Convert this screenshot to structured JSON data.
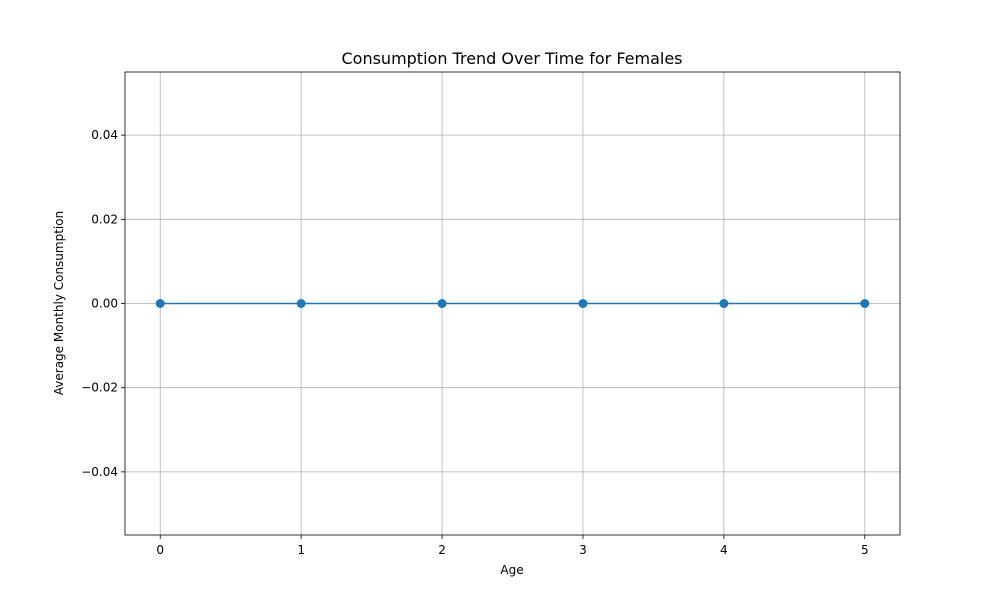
{
  "chart_data": {
    "type": "line",
    "title": "Consumption Trend Over Time for Females",
    "xlabel": "Age",
    "ylabel": "Average Monthly Consumption",
    "x": [
      0,
      1,
      2,
      3,
      4,
      5
    ],
    "series": [
      {
        "values": [
          0.0,
          0.0,
          0.0,
          0.0,
          0.0,
          0.0
        ]
      }
    ],
    "xlim": [
      -0.25,
      5.25
    ],
    "ylim": [
      -0.055,
      0.055
    ],
    "xticks": [
      0,
      1,
      2,
      3,
      4,
      5
    ],
    "xtick_labels": [
      "0",
      "1",
      "2",
      "3",
      "4",
      "5"
    ],
    "yticks": [
      -0.04,
      -0.02,
      0.0,
      0.02,
      0.04
    ],
    "ytick_labels": [
      "−0.04",
      "−0.02",
      "0.00",
      "0.02",
      "0.04"
    ],
    "grid": true,
    "line_color": "#1f77b4",
    "grid_color": "#b0b0b0"
  }
}
